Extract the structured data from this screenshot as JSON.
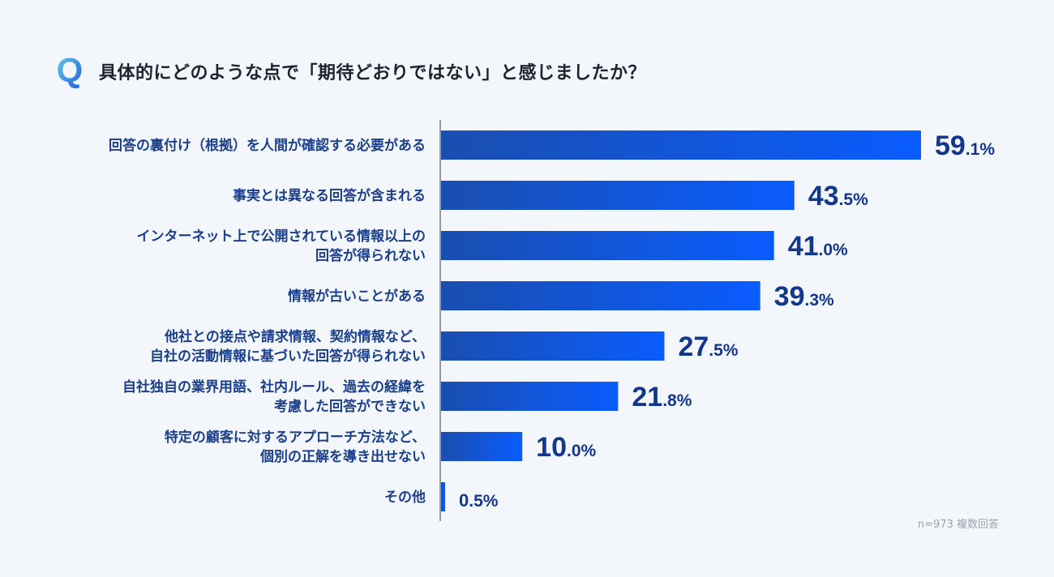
{
  "header": {
    "icon_letter": "Q",
    "title": "具体的にどのような点で「期待どおりではない」と感じましたか？"
  },
  "note": "n=973 複数回答",
  "colors": {
    "bar_start": "#1a4eb0",
    "bar_end": "#0a5cff",
    "label": "#1c3f8a",
    "value": "#13378a",
    "axis": "#3a3f47"
  },
  "chart_data": {
    "type": "bar",
    "orientation": "horizontal",
    "unit": "%",
    "categories": [
      [
        "回答の裏付け（根拠）を人間が確認する必要がある"
      ],
      [
        "事実とは異なる回答が含まれる"
      ],
      [
        "インターネット上で公開されている情報以上の",
        "回答が得られない"
      ],
      [
        "情報が古いことがある"
      ],
      [
        "他社との接点や請求情報、契約情報など、",
        "自社の活動情報に基づいた回答が得られない"
      ],
      [
        "自社独自の業界用語、社内ルール、過去の経緯を",
        "考慮した回答ができない"
      ],
      [
        "特定の顧客に対するアプローチ方法など、",
        "個別の正解を導き出せない"
      ],
      [
        "その他"
      ]
    ],
    "values": [
      59.1,
      43.5,
      41.0,
      39.3,
      27.5,
      21.8,
      10.0,
      0.5
    ],
    "xlim": [
      0,
      59.1
    ],
    "grid": false,
    "legend": "none"
  }
}
